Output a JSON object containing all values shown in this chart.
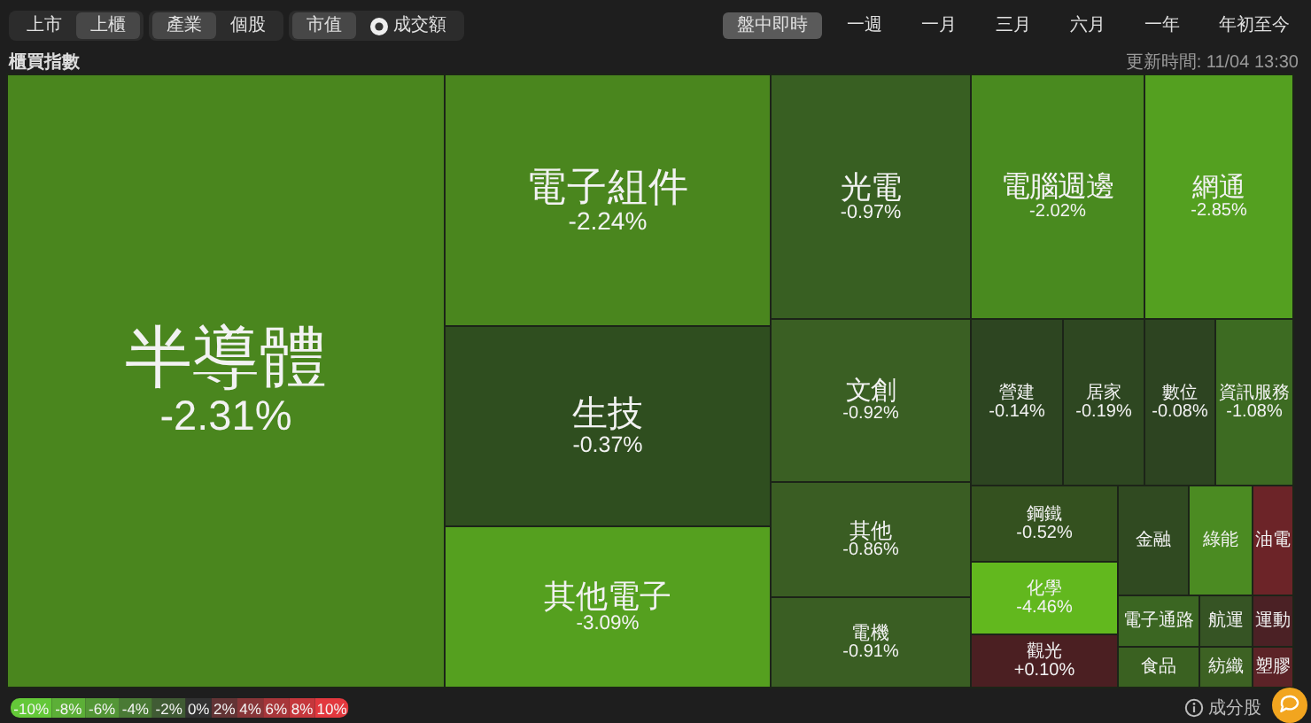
{
  "chart_data": {
    "type": "other",
    "title": "櫃買指數",
    "categories": [
      "半導體",
      "電子組件",
      "生技",
      "其他電子",
      "光電",
      "文創",
      "其他",
      "電機",
      "電腦週邊",
      "網通",
      "營建",
      "居家",
      "數位",
      "資訊服務",
      "鋼鐵",
      "化學",
      "觀光",
      "金融",
      "綠能",
      "油電",
      "電子通路",
      "航運",
      "運動",
      "食品",
      "紡織",
      "塑膠"
    ],
    "values": [
      -2.31,
      -2.24,
      -0.37,
      -3.09,
      -0.97,
      -0.92,
      -0.86,
      -0.91,
      -2.02,
      -2.85,
      -0.14,
      -0.19,
      -0.08,
      -1.08,
      -0.52,
      -4.46,
      0.1,
      null,
      null,
      null,
      null,
      null,
      null,
      null,
      null,
      null
    ],
    "value_labels": [
      "-2.31%",
      "-2.24%",
      "-0.37%",
      "-3.09%",
      "-0.97%",
      "-0.92%",
      "-0.86%",
      "-0.91%",
      "-2.02%",
      "-2.85%",
      "-0.14%",
      "-0.19%",
      "-0.08%",
      "-1.08%",
      "-0.52%",
      "-4.46%",
      "+0.10%",
      null,
      null,
      null,
      null,
      null,
      null,
      null,
      null,
      null
    ],
    "colors": [
      "#4a861e",
      "#4a861e",
      "#2f4e1f",
      "#55a01f",
      "#385f22",
      "#3a5f23",
      "#3a5d23",
      "#3a5e23",
      "#498a1f",
      "#54a020",
      "#2d4521",
      "#2e4721",
      "#2d4421",
      "#3d6b22",
      "#34511f",
      "#62b81e",
      "#4b1f22",
      "#304a21",
      "#4b8b22",
      "#6c2428",
      "#3b6622",
      "#365424",
      "#4b2125",
      "#3a6121",
      "#3d6223",
      "#5c2327"
    ],
    "annotations": [
      "上市",
      "上櫃",
      "產業",
      "個股",
      "市值",
      "成交額",
      "盤中即時",
      "一週",
      "一月",
      "三月",
      "六月",
      "一年",
      "年初至今",
      "-10%",
      "-8%",
      "-6%",
      "-4%",
      "-2%",
      "0%",
      "2%",
      "4%",
      "6%",
      "8%",
      "10%",
      "更新時間: 11/04 13:30",
      "成分股"
    ]
  }
}
